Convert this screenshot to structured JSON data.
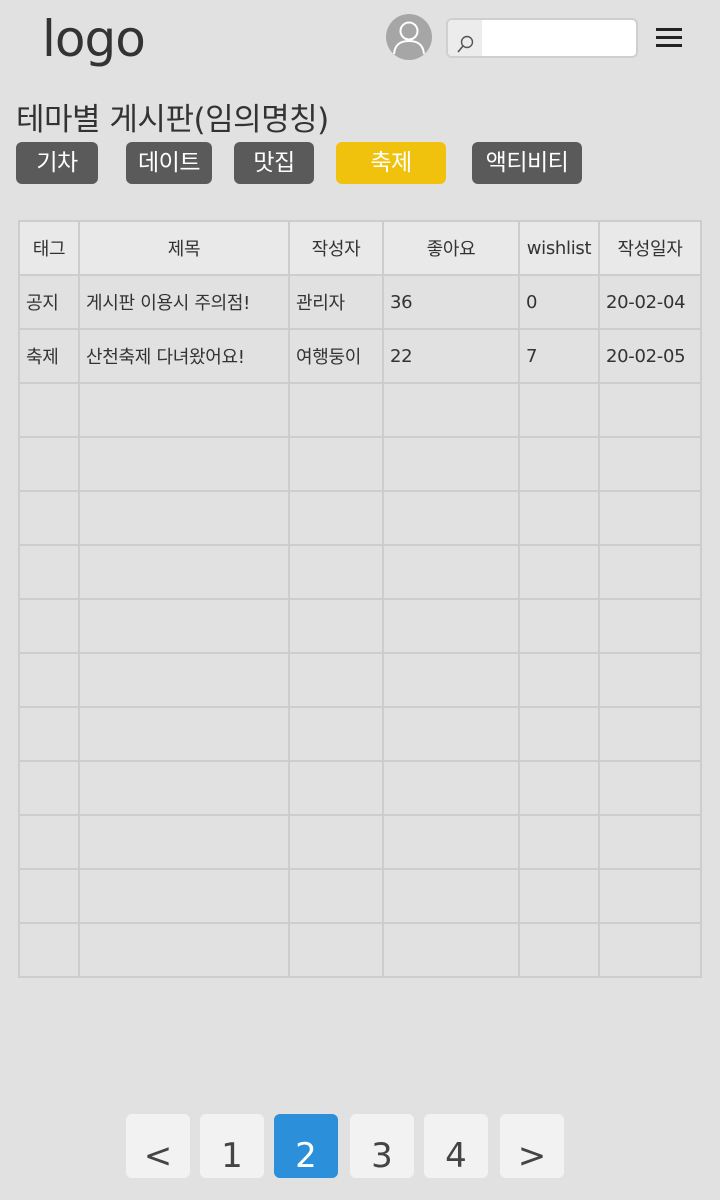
{
  "header": {
    "logo": "logo",
    "search": {
      "placeholder": "",
      "value": ""
    }
  },
  "title": "테마별 게시판(임의명칭)",
  "tabs": [
    {
      "label": "기차",
      "active": false
    },
    {
      "label": "데이트",
      "active": false
    },
    {
      "label": "맛집",
      "active": false
    },
    {
      "label": "축제",
      "active": true
    },
    {
      "label": "액티비티",
      "active": false
    }
  ],
  "table": {
    "columns": [
      "태그",
      "제목",
      "작성자",
      "좋아요",
      "wishlist",
      "작성일자"
    ],
    "rows": [
      [
        "공지",
        "게시판 이용시 주의점!",
        "관리자",
        "36",
        "0",
        "20-02-04"
      ],
      [
        "축제",
        "산천축제 다녀왔어요!",
        "여행둥이",
        "22",
        "7",
        "20-02-05"
      ],
      [
        "",
        "",
        "",
        "",
        "",
        ""
      ],
      [
        "",
        "",
        "",
        "",
        "",
        ""
      ],
      [
        "",
        "",
        "",
        "",
        "",
        ""
      ],
      [
        "",
        "",
        "",
        "",
        "",
        ""
      ],
      [
        "",
        "",
        "",
        "",
        "",
        ""
      ],
      [
        "",
        "",
        "",
        "",
        "",
        ""
      ],
      [
        "",
        "",
        "",
        "",
        "",
        ""
      ],
      [
        "",
        "",
        "",
        "",
        "",
        ""
      ],
      [
        "",
        "",
        "",
        "",
        "",
        ""
      ],
      [
        "",
        "",
        "",
        "",
        "",
        ""
      ],
      [
        "",
        "",
        "",
        "",
        "",
        ""
      ]
    ]
  },
  "pagination": {
    "prev": "<",
    "pages": [
      "1",
      "2",
      "3",
      "4"
    ],
    "current": "2",
    "next": ">"
  },
  "colors": {
    "active_tab": "#f0c20d",
    "tab": "#5a5a5a",
    "current_page": "#2b90d9",
    "background": "#e1e1e1"
  }
}
